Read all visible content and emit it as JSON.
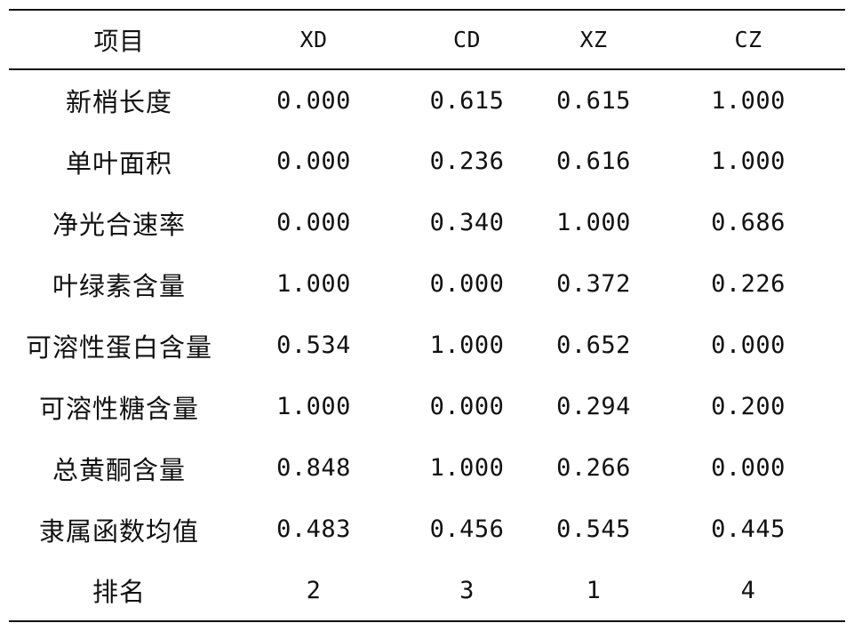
{
  "table": {
    "headers": [
      "项目",
      "XD",
      "CD",
      "XZ",
      "CZ"
    ],
    "rows": [
      [
        "新梢长度",
        "0.000",
        "0.615",
        "0.615",
        "1.000"
      ],
      [
        "单叶面积",
        "0.000",
        "0.236",
        "0.616",
        "1.000"
      ],
      [
        "净光合速率",
        "0.000",
        "0.340",
        "1.000",
        "0.686"
      ],
      [
        "叶绿素含量",
        "1.000",
        "0.000",
        "0.372",
        "0.226"
      ],
      [
        "可溶性蛋白含量",
        "0.534",
        "1.000",
        "0.652",
        "0.000"
      ],
      [
        "可溶性糖含量",
        "1.000",
        "0.000",
        "0.294",
        "0.200"
      ],
      [
        "总黄酮含量",
        "0.848",
        "1.000",
        "0.266",
        "0.000"
      ],
      [
        "隶属函数均值",
        "0.483",
        "0.456",
        "0.545",
        "0.445"
      ],
      [
        "排名",
        "2",
        "3",
        "1",
        "4"
      ]
    ]
  }
}
